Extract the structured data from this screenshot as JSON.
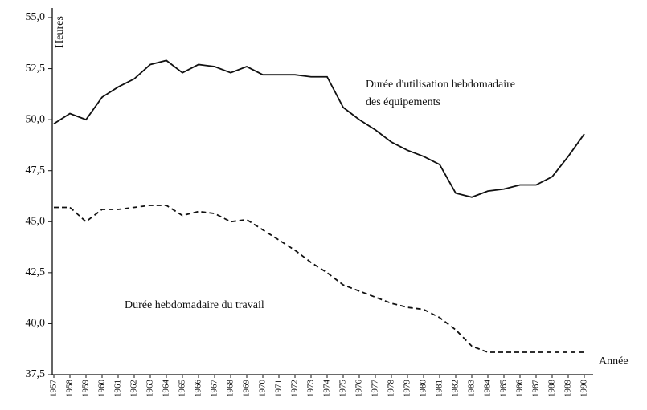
{
  "chart_data": {
    "type": "line",
    "y_label": "Heures",
    "x_label": "Année",
    "annotations": [
      "Durée d'utilisation hebdomadaire",
      "des équipements",
      "Durée hebdomadaire du travail"
    ],
    "categories": [
      "1957",
      "1958",
      "1959",
      "1960",
      "1961",
      "1962",
      "1963",
      "1964",
      "1965",
      "1966",
      "1967",
      "1968",
      "1969",
      "1970",
      "1971",
      "1972",
      "1973",
      "1974",
      "1975",
      "1976",
      "1977",
      "1978",
      "1979",
      "1980",
      "1981",
      "1982",
      "1983",
      "1984",
      "1985",
      "1986",
      "1987",
      "1988",
      "1989",
      "1990"
    ],
    "series": [
      {
        "color": "#111",
        "dashed": false,
        "values": [
          49.8,
          50.3,
          50.0,
          51.1,
          51.6,
          52.0,
          52.7,
          52.9,
          52.3,
          52.7,
          52.6,
          52.3,
          52.6,
          52.2,
          52.2,
          52.2,
          52.1,
          52.1,
          50.6,
          50.0,
          49.5,
          48.9,
          48.5,
          48.2,
          47.8,
          46.4,
          46.2,
          46.5,
          46.6,
          46.8,
          46.8,
          47.2,
          48.2,
          49.3
        ]
      },
      {
        "color": "#111",
        "dashed": true,
        "values": [
          45.7,
          45.7,
          45.0,
          45.6,
          45.6,
          45.7,
          45.8,
          45.8,
          45.3,
          45.5,
          45.4,
          45.0,
          45.1,
          44.6,
          44.1,
          43.6,
          43.0,
          42.5,
          41.9,
          41.6,
          41.3,
          41.0,
          40.8,
          40.7,
          40.3,
          39.7,
          38.9,
          38.6,
          38.6,
          38.6,
          38.6,
          38.6,
          38.6,
          38.6
        ]
      }
    ],
    "ylim": [
      37.5,
      55
    ],
    "yticks": [
      {
        "value": 37.5,
        "label": "37,5"
      },
      {
        "value": 40,
        "label": "40,0"
      },
      {
        "value": 42.5,
        "label": "42,5"
      },
      {
        "value": 45,
        "label": "45,0"
      },
      {
        "value": 47.5,
        "label": "47,5"
      },
      {
        "value": 50,
        "label": "50,0"
      },
      {
        "value": 52.5,
        "label": "52,5"
      },
      {
        "value": 55,
        "label": "55,0"
      }
    ],
    "grid": false
  }
}
